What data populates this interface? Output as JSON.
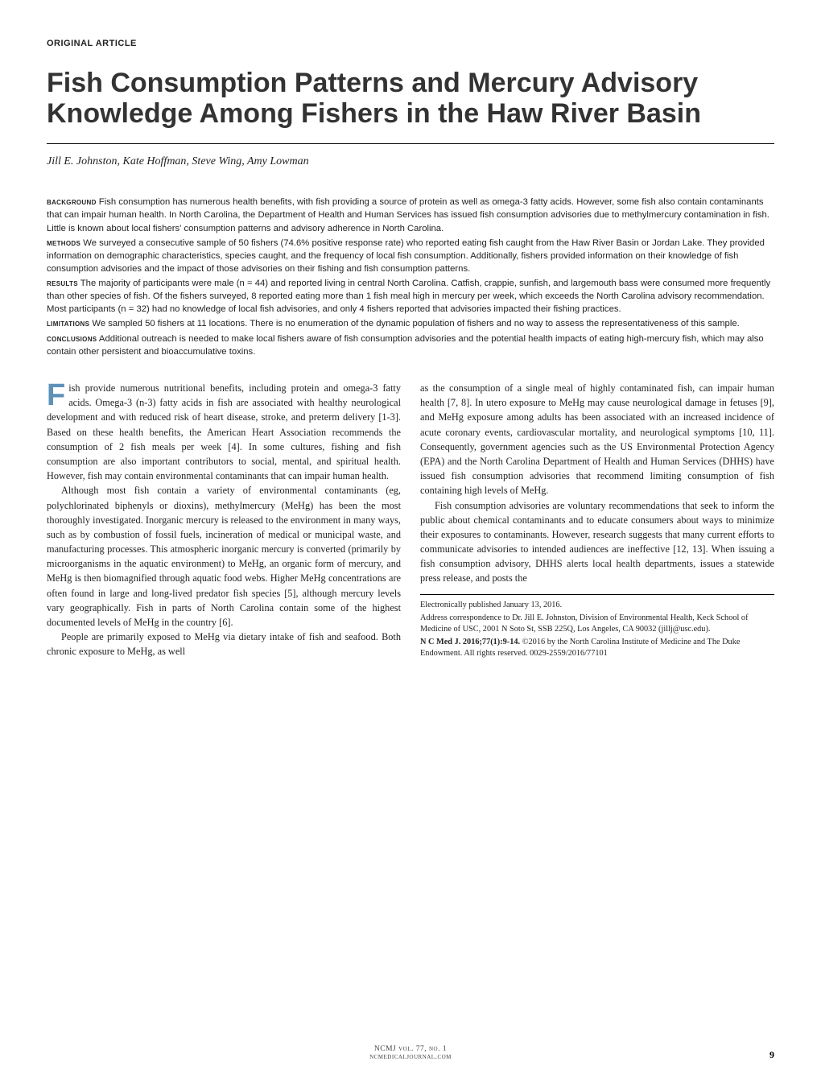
{
  "article_type": "ORIGINAL ARTICLE",
  "title": "Fish Consumption Patterns and Mercury Advisory Knowledge Among Fishers in the Haw River Basin",
  "authors": "Jill E. Johnston, Kate Hoffman, Steve Wing, Amy Lowman",
  "abstract": {
    "background": {
      "label": "background",
      "text": " Fish consumption has numerous health benefits, with fish providing a source of protein as well as omega-3 fatty acids. However, some fish also contain contaminants that can impair human health. In North Carolina, the Department of Health and Human Services has issued fish consumption advisories due to methylmercury contamination in fish. Little is known about local fishers' consumption patterns and advisory adherence in North Carolina."
    },
    "methods": {
      "label": "methods",
      "text": " We surveyed a consecutive sample of 50 fishers (74.6% positive response rate) who reported eating fish caught from the Haw River Basin or Jordan Lake. They provided information on demographic characteristics, species caught, and the frequency of local fish consumption. Additionally, fishers provided information on their knowledge of fish consumption advisories and the impact of those advisories on their fishing and fish consumption patterns."
    },
    "results": {
      "label": "results",
      "text": " The majority of participants were male (n = 44) and reported living in central North Carolina. Catfish, crappie, sunfish, and largemouth bass were consumed more frequently than other species of fish. Of the fishers surveyed, 8 reported eating more than 1 fish meal high in mercury per week, which exceeds the North Carolina advisory recommendation. Most participants (n = 32) had no knowledge of local fish advisories, and only 4 fishers reported that advisories impacted their fishing practices."
    },
    "limitations": {
      "label": "limitations",
      "text": " We sampled 50 fishers at 11 locations. There is no enumeration of the dynamic population of fishers and no way to assess the representativeness of this sample."
    },
    "conclusions": {
      "label": "conclusions",
      "text": " Additional outreach is needed to make local fishers aware of fish consumption advisories and the potential health impacts of eating high-mercury fish, which may also contain other persistent and bioaccumulative toxins."
    }
  },
  "body": {
    "p1_dropcap": "F",
    "p1": "ish provide numerous nutritional benefits, including protein and omega-3 fatty acids. Omega-3 (n-3) fatty acids in fish are associated with healthy neurological development and with reduced risk of heart disease, stroke, and preterm delivery [1-3]. Based on these health benefits, the American Heart Association recommends the consumption of 2 fish meals per week [4]. In some cultures, fishing and fish consumption are also important contributors to social, mental, and spiritual health. However, fish may contain environmental contaminants that can impair human health.",
    "p2": "Although most fish contain a variety of environmental contaminants (eg, polychlorinated biphenyls or dioxins), methylmercury (MeHg) has been the most thoroughly investigated. Inorganic mercury is released to the environment in many ways, such as by combustion of fossil fuels, incineration of medical or municipal waste, and manufacturing processes. This atmospheric inorganic mercury is converted (primarily by microorganisms in the aquatic environment) to MeHg, an organic form of mercury, and MeHg is then biomagnified through aquatic food webs. Higher MeHg concentrations are often found in large and long-lived predator fish species [5], although mercury levels vary geographically. Fish in parts of North Carolina contain some of the highest documented levels of MeHg in the country [6].",
    "p3": "People are primarily exposed to MeHg via dietary intake of fish and seafood. Both chronic exposure to MeHg, as well",
    "p4": "as the consumption of a single meal of highly contaminated fish, can impair human health [7, 8]. In utero exposure to MeHg may cause neurological damage in fetuses [9], and MeHg exposure among adults has been associated with an increased incidence of acute coronary events, cardiovascular mortality, and neurological symptoms [10, 11]. Consequently, government agencies such as the US Environmental Protection Agency (EPA) and the North Carolina Department of Health and Human Services (DHHS) have issued fish consumption advisories that recommend limiting consumption of fish containing high levels of MeHg.",
    "p5": "Fish consumption advisories are voluntary recommendations that seek to inform the public about chemical contaminants and to educate consumers about ways to minimize their exposures to contaminants. However, research suggests that many current efforts to communicate advisories to intended audiences are ineffective [12, 13]. When issuing a fish consumption advisory, DHHS alerts local health departments, issues a statewide press release, and posts the"
  },
  "footnotes": {
    "f1": "Electronically published January 13, 2016.",
    "f2": "Address correspondence to Dr. Jill E. Johnston, Division of Environmental Health, Keck School of Medicine of USC, 2001 N Soto St, SSB 225Q, Los Angeles, CA 90032 (jillj@usc.edu).",
    "f3a": "N C Med J. 2016;77(1):9-14.",
    "f3b": " ©2016 by the North Carolina Institute of Medicine and The Duke Endowment. All rights reserved. 0029-2559/2016/77101"
  },
  "footer": {
    "vol": "NCMJ vol. 77, no. 1",
    "site": "ncmedicaljournal.com",
    "page": "9"
  },
  "colors": {
    "dropcap": "#5d91b8",
    "text": "#222222",
    "title": "#333333",
    "background": "#ffffff",
    "rule": "#000000"
  },
  "typography": {
    "title_fontsize": 34,
    "body_fontsize": 12.3,
    "abstract_fontsize": 11.3,
    "footnote_fontsize": 10.3,
    "dropcap_fontsize": 38
  }
}
